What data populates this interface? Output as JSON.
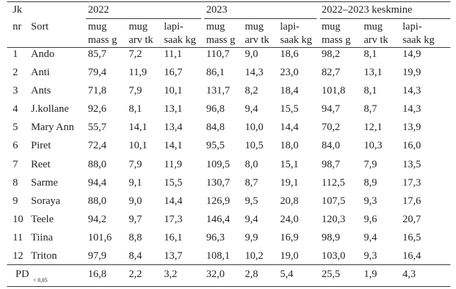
{
  "header": {
    "jk": "Jk",
    "nr": "nr",
    "sort": "Sort",
    "groups": [
      "2022",
      "2023",
      "2022–2023 keskmine"
    ],
    "columns": [
      [
        "mug",
        "mass g"
      ],
      [
        "mug",
        "arv tk"
      ],
      [
        "lapi-",
        "saak kg"
      ],
      [
        "mug",
        "mass g"
      ],
      [
        "mug",
        "arv tk"
      ],
      [
        "lapi-",
        "saak kg"
      ],
      [
        "mug",
        "mass g"
      ],
      [
        "mug",
        "arv tk"
      ],
      [
        "lapi-",
        "saak kg"
      ]
    ]
  },
  "rows": [
    [
      "1",
      "Ando",
      "85,7",
      "7,2",
      "11,1",
      "110,7",
      "9,0",
      "18,6",
      "98,2",
      "8,1",
      "14,9"
    ],
    [
      "2",
      "Anti",
      "79,4",
      "11,9",
      "16,7",
      "86,1",
      "14,3",
      "23,0",
      "82,7",
      "13,1",
      "19,9"
    ],
    [
      "3",
      "Ants",
      "71,8",
      "7,9",
      "10,1",
      "131,7",
      "8,2",
      "18,4",
      "101,8",
      "8,1",
      "14,3"
    ],
    [
      "4",
      "J.kollane",
      "92,6",
      "8,1",
      "13,1",
      "96,8",
      "9,4",
      "15,5",
      "94,7",
      "8,7",
      "14,3"
    ],
    [
      "5",
      "Mary Ann",
      "55,7",
      "14,1",
      "13,4",
      "84,8",
      "10,0",
      "14,4",
      "70,2",
      "12,1",
      "13,9"
    ],
    [
      "6",
      "Piret",
      "72,4",
      "10,1",
      "14,1",
      "95,5",
      "10,5",
      "18,0",
      "84,0",
      "10,3",
      "16,0"
    ],
    [
      "7",
      "Reet",
      "88,0",
      "7,9",
      "11,9",
      "109,5",
      "8,0",
      "15,1",
      "98,7",
      "7,9",
      "13,5"
    ],
    [
      "8",
      "Sarme",
      "94,4",
      "9,1",
      "15,5",
      "130,7",
      "8,7",
      "19,1",
      "112,5",
      "8,9",
      "17,3"
    ],
    [
      "9",
      "Soraya",
      "88,0",
      "9,0",
      "14,4",
      "126,9",
      "9,5",
      "20,8",
      "107,5",
      "9,3",
      "17,6"
    ],
    [
      "10",
      "Teele",
      "94,2",
      "9,7",
      "17,3",
      "146,4",
      "9,4",
      "24,0",
      "120,3",
      "9,6",
      "20,7"
    ],
    [
      "11",
      "Tiina",
      "101,6",
      "8,8",
      "16,1",
      "96,3",
      "9,9",
      "16,9",
      "98,9",
      "9,4",
      "16,5"
    ],
    [
      "12",
      "Triton",
      "97,9",
      "8,4",
      "13,7",
      "108,1",
      "10,2",
      "19,0",
      "103,0",
      "9,3",
      "16,4"
    ]
  ],
  "pd": {
    "label": "PD",
    "sub": "< 0,05",
    "values": [
      "16,8",
      "2,2",
      "3,2",
      "32,0",
      "2,8",
      "5,4",
      "25,5",
      "1,9",
      "4,3"
    ]
  }
}
